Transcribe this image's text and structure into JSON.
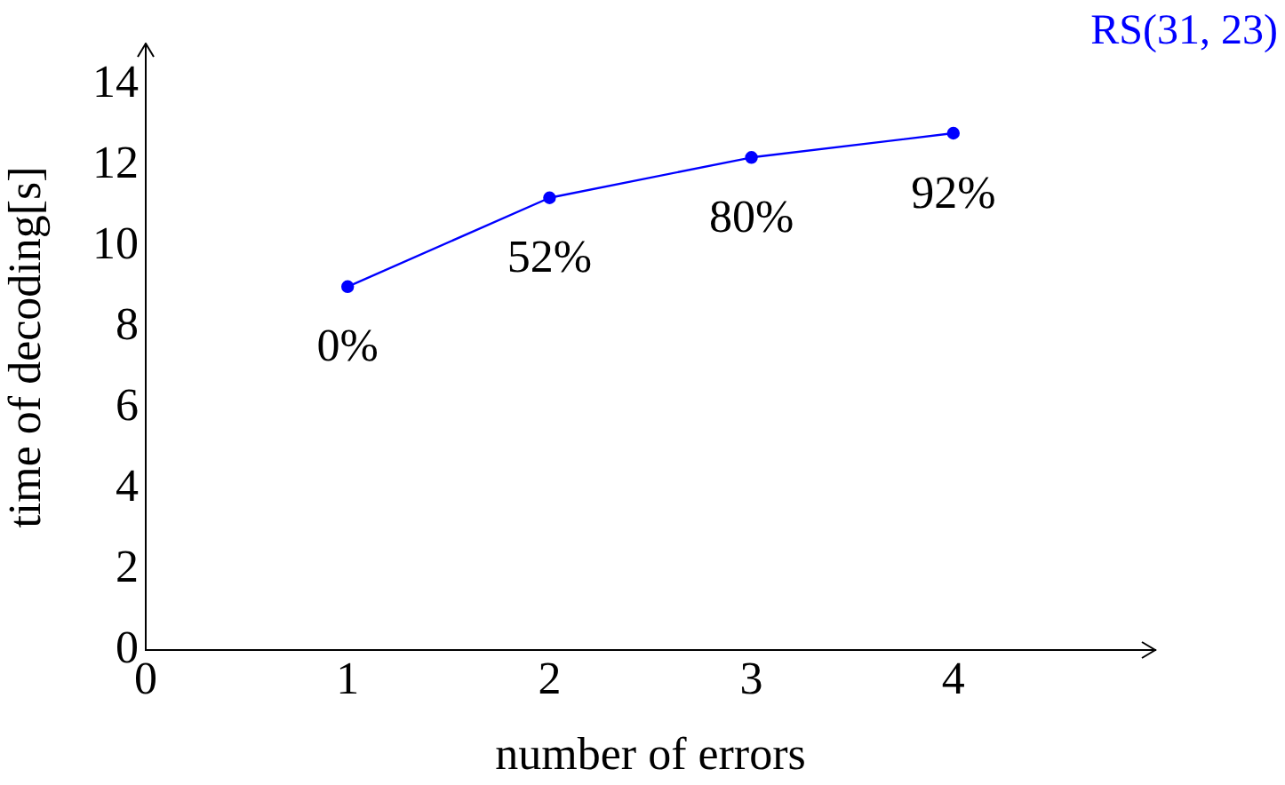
{
  "chart_data": {
    "type": "line",
    "xlabel": "number of errors",
    "ylabel": "time of decoding[s]",
    "x": [
      1,
      2,
      3,
      4
    ],
    "series": [
      {
        "name": "RS(31, 23)",
        "color": "#0000ff",
        "values": [
          9.0,
          11.2,
          12.2,
          12.8
        ]
      }
    ],
    "xlim": [
      0,
      5
    ],
    "xticks": [
      0,
      1,
      2,
      3,
      4
    ],
    "ylim": [
      0,
      15
    ],
    "yticks": [
      0,
      2,
      4,
      6,
      8,
      10,
      12,
      14
    ],
    "grid": false,
    "legend": "top right",
    "marker": "circle",
    "line_style": "solid",
    "annotations": [
      {
        "text": "0%",
        "x": 1,
        "y": 9.0
      },
      {
        "text": "52%",
        "x": 2,
        "y": 11.2
      },
      {
        "text": "80%",
        "x": 3,
        "y": 12.2
      },
      {
        "text": "92%",
        "x": 4,
        "y": 12.8
      }
    ]
  }
}
